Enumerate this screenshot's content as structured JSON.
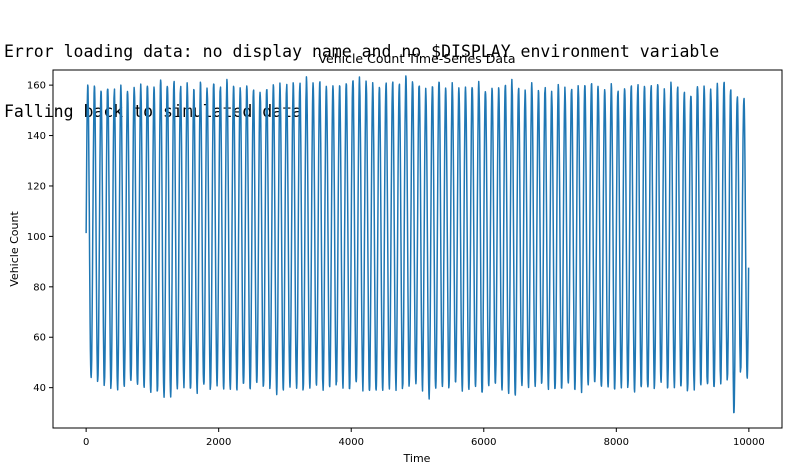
{
  "console": {
    "lines": [
      "Error loading data: no display name and no $DISPLAY environment variable",
      "Falling back to simulated data."
    ]
  },
  "chart_data": {
    "type": "line",
    "title": "Vehicle Count Time-Series Data",
    "xlabel": "Time",
    "ylabel": "Vehicle Count",
    "xlim": [
      -500,
      10500
    ],
    "ylim": [
      24,
      166
    ],
    "xticks": [
      0,
      2000,
      4000,
      6000,
      8000,
      10000
    ],
    "yticks": [
      40,
      60,
      80,
      100,
      120,
      140,
      160
    ],
    "grid": false,
    "color": "#1f77b4",
    "series": [
      {
        "x_start": 0,
        "x_end": 9999,
        "n_points": 10000,
        "period": 100,
        "mean": 100,
        "amplitude": 55,
        "noise": 3,
        "cycle_peaks": [
          159,
          159,
          158,
          160,
          158,
          159,
          158,
          160,
          160,
          161,
          158,
          162,
          161,
          162,
          159,
          160,
          158,
          160,
          159,
          162,
          159,
          162,
          160,
          159,
          160,
          158,
          158,
          159,
          159,
          160,
          160,
          160,
          161,
          162,
          160,
          161,
          159,
          160,
          159,
          160,
          163,
          162,
          161,
          160,
          159,
          161,
          161,
          160,
          163,
          162,
          161,
          158,
          160,
          161,
          158,
          160,
          159,
          159,
          160,
          161,
          159,
          160,
          158,
          160,
          161,
          159,
          158,
          160,
          157,
          159,
          157,
          159,
          158,
          159,
          160,
          160,
          161,
          160,
          159,
          160,
          158,
          160,
          160,
          160,
          160,
          160,
          161,
          158,
          160,
          159,
          157,
          157,
          160,
          160,
          158,
          160,
          161,
          158,
          156,
          155
        ],
        "cycle_troughs": [
          43,
          42,
          41,
          40,
          39,
          40,
          42,
          41,
          40,
          38,
          39,
          36,
          37,
          39,
          41,
          40,
          39,
          40,
          39,
          41,
          40,
          39,
          40,
          41,
          40,
          42,
          41,
          40,
          38,
          40,
          41,
          40,
          39,
          40,
          41,
          39,
          40,
          41,
          40,
          39,
          41,
          40,
          39,
          38,
          39,
          40,
          40,
          40,
          41,
          41,
          40,
          36,
          39,
          41,
          40,
          42,
          40,
          39,
          40,
          38,
          40,
          41,
          40,
          39,
          38,
          40,
          41,
          40,
          41,
          40,
          39,
          40,
          41,
          40,
          39,
          40,
          41,
          39,
          40,
          40,
          41,
          40,
          39,
          40,
          39,
          40,
          41,
          40,
          41,
          40,
          39,
          40,
          41,
          40,
          39,
          42,
          43,
          30,
          46,
          45
        ]
      }
    ]
  }
}
